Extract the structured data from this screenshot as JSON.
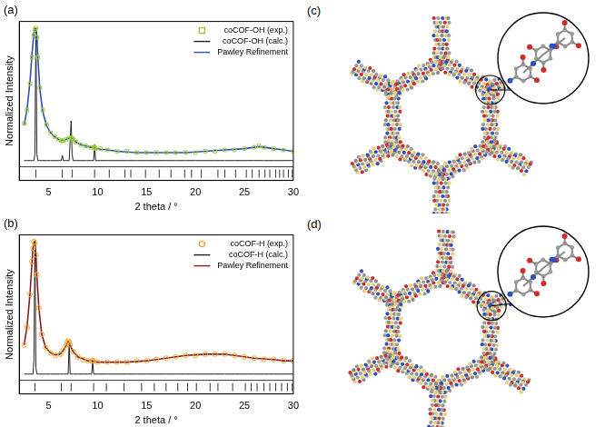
{
  "chart_data": [
    {
      "type": "line",
      "title": "(a)",
      "x_label": "2 theta / °",
      "y_label": "Normalized Intensity",
      "xlim": [
        2,
        30
      ],
      "xticks": [
        5,
        10,
        15,
        20,
        25,
        30
      ],
      "ylim": [
        -0.15,
        1.05
      ],
      "tick_labels": "x",
      "grid": false,
      "legend": "upper right",
      "x": [
        2.5,
        2.8,
        3.1,
        3.3,
        3.5,
        3.6,
        3.7,
        3.8,
        3.9,
        4.1,
        4.4,
        4.8,
        5.2,
        5.6,
        6.0,
        6.3,
        6.4,
        6.5,
        6.8,
        7.1,
        7.3,
        7.4,
        7.5,
        7.8,
        8.3,
        8.8,
        9.3,
        9.6,
        9.7,
        9.8,
        10.3,
        11,
        12,
        13,
        14,
        15,
        16,
        17,
        18,
        19,
        20,
        21,
        22,
        23,
        24,
        25,
        26,
        26.5,
        27,
        28,
        29,
        30
      ],
      "series": [
        {
          "name": "coCOF-OH (exp.)",
          "color": "#9ccc3c",
          "marker": "square",
          "values": [
            0.28,
            0.38,
            0.58,
            0.78,
            0.95,
            0.99,
            1.0,
            0.93,
            0.78,
            0.55,
            0.38,
            0.27,
            0.21,
            0.18,
            0.16,
            0.15,
            0.15,
            0.15,
            0.16,
            0.17,
            0.17,
            0.17,
            0.16,
            0.14,
            0.12,
            0.11,
            0.1,
            0.1,
            0.1,
            0.09,
            0.09,
            0.08,
            0.07,
            0.07,
            0.06,
            0.06,
            0.06,
            0.06,
            0.06,
            0.06,
            0.06,
            0.07,
            0.07,
            0.08,
            0.08,
            0.09,
            0.1,
            0.11,
            0.1,
            0.09,
            0.08,
            0.07
          ]
        },
        {
          "name": "coCOF-OH (calc.)",
          "color": "#222222",
          "line_style": "solid",
          "values": [
            0,
            0,
            0,
            0,
            0,
            0.05,
            1.0,
            0.05,
            0,
            0,
            0,
            0,
            0,
            0,
            0,
            0,
            0.04,
            0,
            0,
            0,
            0.3,
            0.05,
            0,
            0,
            0,
            0,
            0,
            0,
            0.12,
            0,
            0,
            0,
            0,
            0,
            0,
            0,
            0,
            0,
            0,
            0,
            0,
            0,
            0,
            0,
            0,
            0,
            0,
            0,
            0,
            0,
            0,
            0
          ]
        },
        {
          "name": "Pawley Refinement",
          "color": "#3050b0",
          "line_style": "solid",
          "values": [
            0.27,
            0.39,
            0.6,
            0.8,
            0.96,
            1.0,
            1.0,
            0.94,
            0.78,
            0.54,
            0.37,
            0.26,
            0.21,
            0.18,
            0.16,
            0.15,
            0.155,
            0.155,
            0.16,
            0.17,
            0.175,
            0.17,
            0.16,
            0.14,
            0.12,
            0.11,
            0.1,
            0.1,
            0.1,
            0.09,
            0.085,
            0.08,
            0.07,
            0.065,
            0.06,
            0.06,
            0.06,
            0.06,
            0.06,
            0.06,
            0.065,
            0.07,
            0.075,
            0.08,
            0.085,
            0.09,
            0.1,
            0.105,
            0.1,
            0.09,
            0.08,
            0.07
          ]
        }
      ],
      "reflections": [
        3.7,
        6.4,
        7.4,
        9.7,
        11.2,
        12.8,
        13.4,
        14.9,
        16.3,
        17.5,
        18.9,
        19.6,
        20.6,
        22.3,
        23.0,
        24.1,
        25.2,
        25.8,
        26.5,
        27.1,
        27.6,
        28.2,
        28.6,
        29.0,
        29.5,
        29.9
      ]
    },
    {
      "type": "line",
      "title": "(b)",
      "x_label": "2 theta / °",
      "y_label": "Normalized Intensity",
      "xlim": [
        2,
        30
      ],
      "xticks": [
        5,
        10,
        15,
        20,
        25,
        30
      ],
      "ylim": [
        -0.15,
        1.05
      ],
      "tick_labels": "x",
      "grid": false,
      "legend": "upper right",
      "x": [
        2.5,
        2.8,
        3.1,
        3.3,
        3.4,
        3.5,
        3.6,
        3.7,
        3.8,
        4.0,
        4.3,
        4.7,
        5.2,
        5.7,
        6.2,
        6.5,
        6.8,
        6.9,
        7.0,
        7.1,
        7.2,
        7.5,
        8.0,
        8.5,
        9.0,
        9.4,
        9.5,
        9.6,
        10.0,
        11,
        12,
        13,
        14,
        15,
        16,
        17,
        18,
        19,
        20,
        21,
        22,
        23,
        24,
        25,
        26,
        27,
        28,
        29,
        30
      ],
      "series": [
        {
          "name": "coCOF-H (exp.)",
          "color": "#f0a830",
          "marker": "circle",
          "values": [
            0.22,
            0.35,
            0.6,
            0.85,
            0.95,
            1.0,
            0.99,
            0.9,
            0.75,
            0.5,
            0.3,
            0.2,
            0.16,
            0.14,
            0.15,
            0.18,
            0.22,
            0.24,
            0.25,
            0.24,
            0.22,
            0.17,
            0.13,
            0.11,
            0.1,
            0.1,
            0.1,
            0.1,
            0.09,
            0.09,
            0.09,
            0.09,
            0.1,
            0.1,
            0.11,
            0.12,
            0.13,
            0.14,
            0.14,
            0.15,
            0.15,
            0.15,
            0.14,
            0.13,
            0.12,
            0.11,
            0.11,
            0.1,
            0.1
          ]
        },
        {
          "name": "coCOF-H (calc.)",
          "color": "#222222",
          "line_style": "solid",
          "values": [
            0,
            0,
            0,
            0,
            0,
            0.1,
            1.0,
            0.05,
            0,
            0,
            0,
            0,
            0,
            0,
            0,
            0,
            0,
            0,
            0,
            0.24,
            0,
            0,
            0,
            0,
            0,
            0,
            0.1,
            0,
            0,
            0,
            0,
            0,
            0,
            0,
            0,
            0,
            0,
            0,
            0,
            0,
            0,
            0,
            0,
            0,
            0,
            0,
            0,
            0,
            0
          ]
        },
        {
          "name": "Pawley Refinement",
          "color": "#8b1c1c",
          "line_style": "solid",
          "values": [
            0.22,
            0.36,
            0.61,
            0.84,
            0.95,
            0.99,
            1.0,
            0.91,
            0.74,
            0.5,
            0.3,
            0.2,
            0.16,
            0.145,
            0.15,
            0.18,
            0.215,
            0.235,
            0.245,
            0.24,
            0.22,
            0.17,
            0.13,
            0.115,
            0.1,
            0.1,
            0.1,
            0.095,
            0.09,
            0.09,
            0.09,
            0.09,
            0.095,
            0.1,
            0.11,
            0.12,
            0.13,
            0.14,
            0.145,
            0.15,
            0.15,
            0.15,
            0.14,
            0.13,
            0.12,
            0.115,
            0.11,
            0.1,
            0.1
          ]
        }
      ],
      "reflections": [
        3.6,
        6.3,
        7.3,
        9.6,
        10.9,
        12.7,
        14.5,
        15.8,
        17.0,
        18.2,
        19.2,
        20.1,
        21.5,
        22.3,
        23.8,
        25.1,
        25.7,
        26.3,
        27.0,
        27.6,
        28.2,
        28.8,
        29.4,
        29.9
      ]
    }
  ],
  "structures": [
    {
      "label": "(c)"
    },
    {
      "label": "(d)"
    }
  ]
}
